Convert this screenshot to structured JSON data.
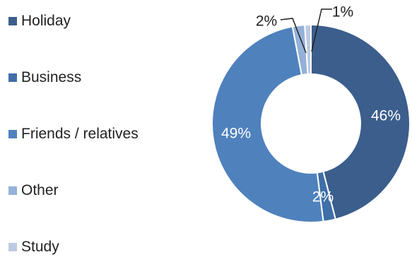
{
  "chart_data": {
    "type": "pie",
    "variant": "donut",
    "legend_position": "left",
    "series": [
      {
        "name": "Holiday",
        "value": 46,
        "label": "46%",
        "color": "#3B5E8C"
      },
      {
        "name": "Business",
        "value": 2,
        "label": "2%",
        "color": "#3F6EA8"
      },
      {
        "name": "Friends / relatives",
        "value": 49,
        "label": "49%",
        "color": "#4F81BD"
      },
      {
        "name": "Other",
        "value": 2,
        "label": "2%",
        "color": "#95B1D9"
      },
      {
        "name": "Study",
        "value": 1,
        "label": "1%",
        "color": "#BCCBE3"
      }
    ]
  }
}
